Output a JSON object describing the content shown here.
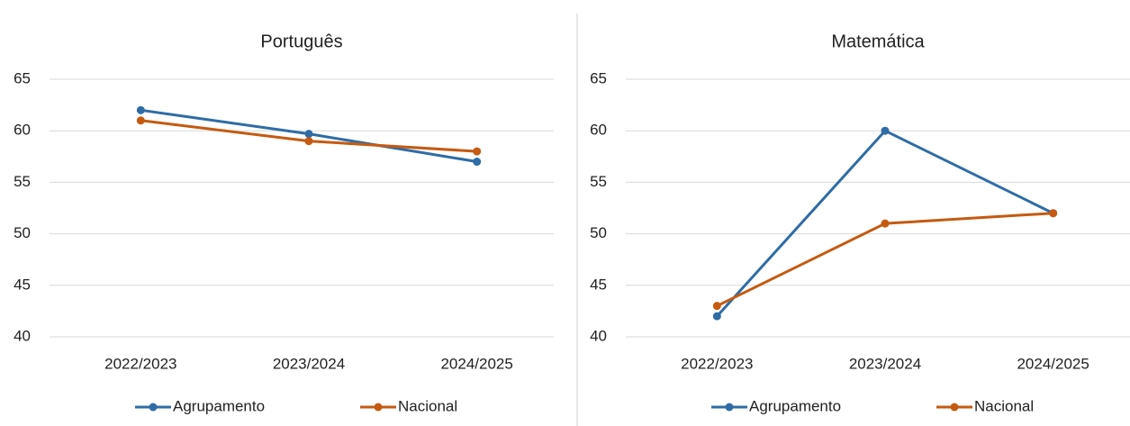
{
  "chart_data": [
    {
      "type": "line",
      "title": "Português",
      "categories": [
        "2022/2023",
        "2023/2024",
        "2024/2025"
      ],
      "series": [
        {
          "name": "Agrupamento",
          "color": "#2e6ca6",
          "values": [
            62,
            59.7,
            57
          ]
        },
        {
          "name": "Nacional",
          "color": "#c55a11",
          "values": [
            61,
            59,
            58
          ]
        }
      ],
      "ylim": [
        40,
        65
      ],
      "yticks": [
        40,
        45,
        50,
        55,
        60,
        65
      ],
      "grid": true,
      "legend": "bottom"
    },
    {
      "type": "line",
      "title": "Matemática",
      "categories": [
        "2022/2023",
        "2023/2024",
        "2024/2025"
      ],
      "series": [
        {
          "name": "Agrupamento",
          "color": "#2e6ca6",
          "values": [
            42,
            60,
            52
          ]
        },
        {
          "name": "Nacional",
          "color": "#c55a11",
          "values": [
            43,
            51,
            52
          ]
        }
      ],
      "ylim": [
        40,
        65
      ],
      "yticks": [
        40,
        45,
        50,
        55,
        60,
        65
      ],
      "grid": true,
      "legend": "bottom"
    }
  ]
}
